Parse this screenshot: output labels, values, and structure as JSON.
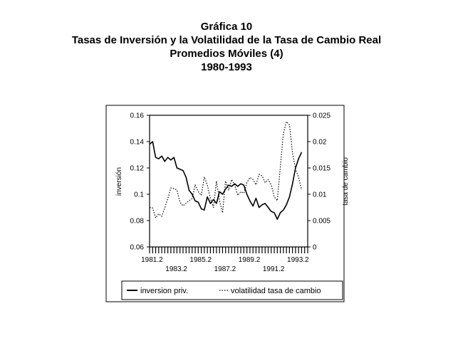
{
  "header": {
    "title": "Gráfica 10",
    "subtitle": "Tasas de Inversión y la Volatilidad de la Tasa de Cambio Real",
    "line3": "Promedios Móviles (4)",
    "line4": "1980-1993"
  },
  "chart_data": {
    "type": "line",
    "ylabel_left": "inversión",
    "ylabel_right": "tasa de cambio",
    "ylim_left": [
      0.06,
      0.16
    ],
    "ylim_right": [
      0,
      0.025
    ],
    "yticks_left": [
      "0.16",
      "0.14",
      "0.12",
      "0.1",
      "0.08",
      "0.06"
    ],
    "yticks_right": [
      "0.025",
      "0.02",
      "0.015",
      "0.01",
      "0.005",
      "0"
    ],
    "xticks_top_row": [
      "1981.2",
      "1985.2",
      "1989.2",
      "1993.2"
    ],
    "xticks_bottom_row": [
      "1983.2",
      "1987.2",
      "1991.2"
    ],
    "x_start": 1981.0,
    "x_end": 1994.0,
    "grid": false,
    "legend_position": "bottom",
    "series": [
      {
        "name": "inversion priv.",
        "axis": "left",
        "style": "solid",
        "x": [
          1981.0,
          1981.25,
          1981.5,
          1981.75,
          1982.0,
          1982.25,
          1982.5,
          1982.75,
          1983.0,
          1983.25,
          1983.5,
          1983.75,
          1984.0,
          1984.25,
          1984.5,
          1984.75,
          1985.0,
          1985.25,
          1985.5,
          1985.75,
          1986.0,
          1986.25,
          1986.5,
          1986.75,
          1987.0,
          1987.25,
          1987.5,
          1987.75,
          1988.0,
          1988.25,
          1988.5,
          1988.75,
          1989.0,
          1989.25,
          1989.5,
          1989.75,
          1990.0,
          1990.25,
          1990.5,
          1990.75,
          1991.0,
          1991.25,
          1991.5,
          1991.75,
          1992.0,
          1992.25,
          1992.5,
          1992.75,
          1993.0,
          1993.25,
          1993.5
        ],
        "values": [
          0.138,
          0.14,
          0.128,
          0.127,
          0.129,
          0.125,
          0.128,
          0.126,
          0.128,
          0.12,
          0.119,
          0.118,
          0.113,
          0.103,
          0.1,
          0.095,
          0.094,
          0.089,
          0.088,
          0.098,
          0.093,
          0.096,
          0.093,
          0.102,
          0.1,
          0.104,
          0.107,
          0.106,
          0.108,
          0.106,
          0.108,
          0.107,
          0.1,
          0.095,
          0.091,
          0.097,
          0.09,
          0.092,
          0.093,
          0.09,
          0.087,
          0.086,
          0.081,
          0.086,
          0.088,
          0.092,
          0.098,
          0.108,
          0.12,
          0.127,
          0.132
        ]
      },
      {
        "name": "volatilidad tasa de cambio",
        "axis": "right",
        "style": "dotted",
        "x": [
          1981.0,
          1981.25,
          1981.5,
          1981.75,
          1982.0,
          1982.25,
          1982.5,
          1982.75,
          1983.0,
          1983.25,
          1983.5,
          1983.75,
          1984.0,
          1984.25,
          1984.5,
          1984.75,
          1985.0,
          1985.25,
          1985.5,
          1985.75,
          1986.0,
          1986.25,
          1986.5,
          1986.75,
          1987.0,
          1987.25,
          1987.5,
          1987.75,
          1988.0,
          1988.25,
          1988.5,
          1988.75,
          1989.0,
          1989.25,
          1989.5,
          1989.75,
          1990.0,
          1990.25,
          1990.5,
          1990.75,
          1991.0,
          1991.25,
          1991.5,
          1991.75,
          1992.0,
          1992.25,
          1992.5,
          1992.75,
          1993.0,
          1993.25,
          1993.5
        ],
        "values": [
          0.0075,
          0.0074,
          0.0055,
          0.0063,
          0.0058,
          0.0074,
          0.0092,
          0.0112,
          0.0111,
          0.0108,
          0.0085,
          0.0078,
          0.0083,
          0.0088,
          0.0092,
          0.0118,
          0.0105,
          0.0098,
          0.0133,
          0.0118,
          0.0092,
          0.0075,
          0.0125,
          0.0088,
          0.0065,
          0.0125,
          0.0108,
          0.0128,
          0.0118,
          0.0098,
          0.0105,
          0.0102,
          0.0122,
          0.0132,
          0.0128,
          0.0118,
          0.0138,
          0.0135,
          0.0122,
          0.0128,
          0.0118,
          0.0095,
          0.0088,
          0.0152,
          0.0215,
          0.0238,
          0.0232,
          0.0178,
          0.0148,
          0.0132,
          0.0108
        ]
      }
    ]
  },
  "legend": {
    "item1": "inversion priv.",
    "item2": "volatilidad tasa de cambio"
  },
  "colors": {
    "line": "#000000",
    "background": "#ffffff"
  }
}
